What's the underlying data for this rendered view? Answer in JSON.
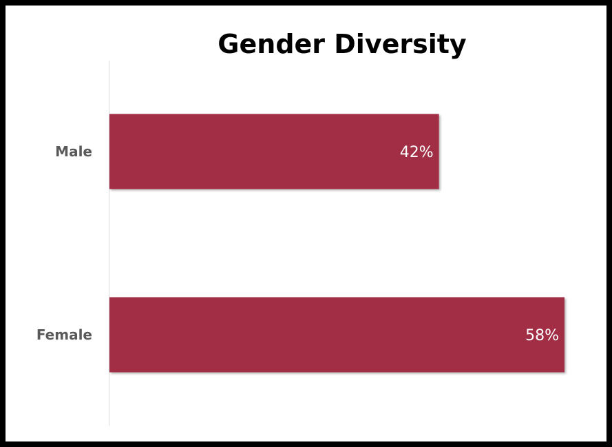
{
  "chart_data": {
    "type": "bar",
    "orientation": "horizontal",
    "title": "Gender Diversity",
    "categories": [
      "Male",
      "Female"
    ],
    "values": [
      42,
      58
    ],
    "data_labels": [
      "42%",
      "58%"
    ],
    "bar_color": "#A12D45",
    "xlim": [
      0,
      60
    ],
    "grid": false,
    "legend": "none"
  }
}
